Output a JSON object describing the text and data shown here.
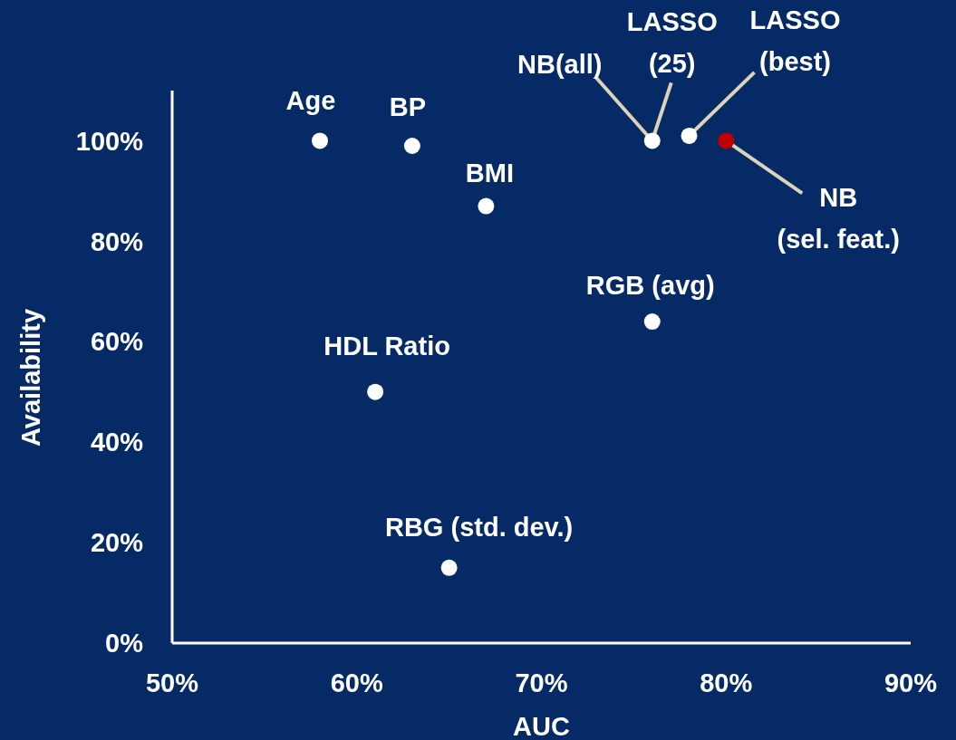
{
  "chart_data": {
    "type": "scatter",
    "xlabel": "AUC",
    "ylabel": "Availability",
    "x": [
      58,
      63,
      67,
      61,
      65,
      76,
      76,
      78,
      80
    ],
    "series": [
      {
        "values": [
          100,
          99,
          87,
          50,
          15,
          64,
          100,
          101,
          100
        ],
        "colors": [
          "#ffffff",
          "#ffffff",
          "#ffffff",
          "#ffffff",
          "#ffffff",
          "#ffffff",
          "#ffffff",
          "#ffffff",
          "#c00000"
        ]
      }
    ],
    "xlim": [
      50,
      90
    ],
    "xticks": [
      {
        "value": 50,
        "label": "50%"
      },
      {
        "value": 60,
        "label": "60%"
      },
      {
        "value": 70,
        "label": "70%"
      },
      {
        "value": 80,
        "label": "80%"
      },
      {
        "value": 90,
        "label": "90%"
      }
    ],
    "ylim": [
      0,
      110
    ],
    "yticks": [
      {
        "value": 0,
        "label": "0%"
      },
      {
        "value": 20,
        "label": "20%"
      },
      {
        "value": 40,
        "label": "40%"
      },
      {
        "value": 60,
        "label": "60%"
      },
      {
        "value": 80,
        "label": "80%"
      },
      {
        "value": 100,
        "label": "100%"
      }
    ],
    "grid": false,
    "marker": "circle",
    "annotations": [
      {
        "text": "Age",
        "x": 58,
        "y": 100
      },
      {
        "text": "BP",
        "x": 63,
        "y": 99
      },
      {
        "text": "BMI",
        "x": 67,
        "y": 87
      },
      {
        "text": "HDL Ratio",
        "x": 61,
        "y": 50
      },
      {
        "text": "RBG (std. dev.)",
        "x": 65,
        "y": 15
      },
      {
        "text": "RGB (avg)",
        "x": 76,
        "y": 64
      },
      {
        "text": "NB(all)",
        "x": 76,
        "y": 100
      },
      {
        "text": "LASSO\n(25)",
        "x": 76,
        "y": 100
      },
      {
        "text": "LASSO\n(best)",
        "x": 78,
        "y": 101
      },
      {
        "text": "NB\n(sel. feat.)",
        "x": 80,
        "y": 100
      }
    ]
  }
}
